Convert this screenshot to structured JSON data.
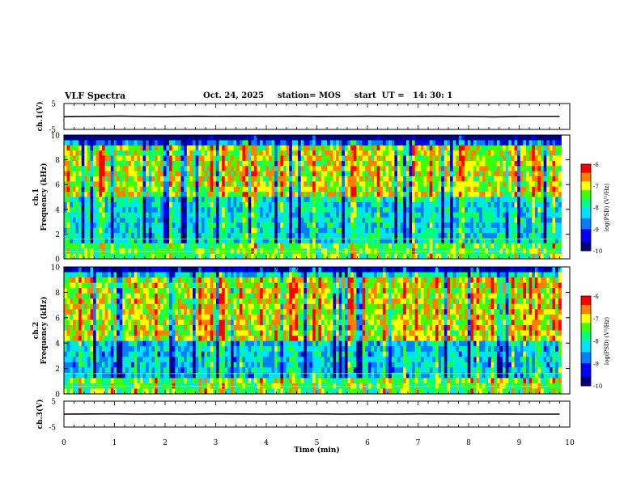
{
  "header": {
    "title": "VLF Spectra",
    "date": "Oct. 24, 2025",
    "station": "station= MOS",
    "start": "start  UT =   14: 30: 1"
  },
  "chart_data": [
    {
      "type": "line",
      "name": "ch1-waveform",
      "ylabel": "ch.1(V)",
      "ylim": [
        -5,
        5
      ],
      "yticks": [
        5,
        -5
      ],
      "x": [
        0,
        0.5,
        1.1,
        1.5,
        2.0,
        2.6,
        3.0,
        3.4,
        4.0,
        4.6,
        5.0,
        5.6,
        6.0,
        6.6,
        7.0,
        7.4,
        8.0,
        8.5,
        9.0,
        9.8
      ],
      "y": [
        -0.1,
        0.0,
        0.15,
        0.0,
        -0.1,
        0.1,
        0.0,
        0.05,
        0.0,
        0.1,
        -0.05,
        0.0,
        0.1,
        0.0,
        0.05,
        0.1,
        0.0,
        -0.15,
        0.0,
        0.0
      ]
    },
    {
      "type": "heatmap",
      "name": "ch1-spectrogram",
      "ylabel": "ch.1\nFrequency (kHz)",
      "ylim": [
        0,
        10
      ],
      "yticks": [
        0,
        2,
        4,
        6,
        8,
        10
      ],
      "xlim": [
        0,
        9.83
      ],
      "colorbar": {
        "label": "log(PSD) (V²/Hz)",
        "range": [
          -10,
          -6
        ],
        "ticks": [
          "-6",
          "-7",
          "-8",
          "-9",
          "-10"
        ]
      }
    },
    {
      "type": "heatmap",
      "name": "ch2-spectrogram",
      "ylabel": "ch.2\nFrequency (kHz)",
      "ylim": [
        0,
        10
      ],
      "yticks": [
        0,
        2,
        4,
        6,
        8,
        10
      ],
      "xlim": [
        0,
        9.83
      ],
      "colorbar": {
        "label": "log(PSD) (V²/Hz)",
        "range": [
          -10,
          -6
        ],
        "ticks": [
          "-6",
          "-7",
          "-8",
          "-9",
          "-10"
        ]
      }
    },
    {
      "type": "line",
      "name": "ch3-waveform",
      "ylabel": "ch.3(V)",
      "ylim": [
        -5,
        5
      ],
      "yticks": [
        5,
        -5
      ],
      "x": [
        0,
        0.5,
        1.0,
        1.5,
        2.0,
        2.5,
        3.0,
        3.5,
        4.0,
        4.5,
        5.0,
        5.5,
        6.0,
        6.5,
        7.0,
        7.5,
        8.0,
        8.5,
        9.0,
        9.8
      ],
      "y": [
        0.0,
        0.05,
        0.1,
        0.0,
        0.05,
        0.0,
        0.1,
        0.05,
        0.0,
        0.05,
        0.1,
        0.0,
        0.05,
        0.0,
        0.1,
        0.05,
        0.0,
        0.05,
        0.0,
        0.0
      ]
    }
  ],
  "xaxis": {
    "label": "Time (min)",
    "xlim": [
      0,
      10
    ],
    "ticks": [
      "0",
      "1",
      "2",
      "3",
      "4",
      "5",
      "6",
      "7",
      "8",
      "9",
      "10"
    ]
  }
}
